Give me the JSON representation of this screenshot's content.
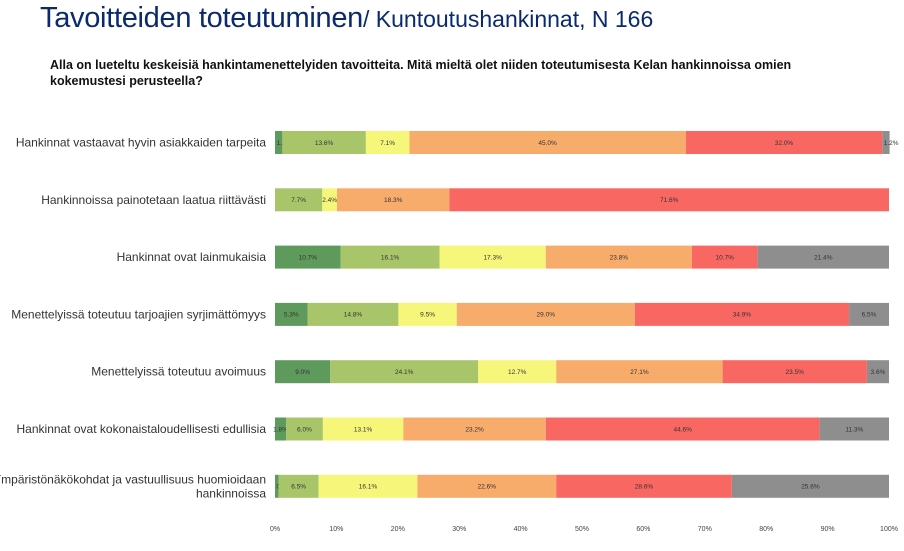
{
  "header": {
    "title_main": "Tavoitteiden toteutuminen",
    "title_sub": "/ Kuntoutushankinnat, N 166",
    "question": "Alla on lueteltu keskeisiä hankintamenettelyiden tavoitteita. Mitä mieltä olet niiden toteutumisesta Kelan hankinnoissa omien kokemustesi perusteella?"
  },
  "chart_data": {
    "type": "bar",
    "orientation": "horizontal",
    "stacked": true,
    "percent_stacked": true,
    "categories": [
      [
        "Hankinnat vastaavat hyvin asiakkaiden tarpeita"
      ],
      [
        "Hankinnoissa painotetaan laatua riittävästi"
      ],
      [
        "Hankinnat ovat lainmukaisia"
      ],
      [
        "Menettelyissä toteutuu tarjoajien syrjimättömyys"
      ],
      [
        "Menettelyissä toteutuu avoimuus"
      ],
      [
        "Hankinnat ovat kokonaistaloudellisesti edullisia"
      ],
      [
        "Ympäristönäkökohdat ja vastuullisuus huomioidaan",
        "hankinnoissa"
      ]
    ],
    "series": [
      {
        "color": "#5e9a5b",
        "values": [
          1.2,
          0,
          10.7,
          5.3,
          9.0,
          1.8,
          0.6
        ],
        "labels": [
          "1.2%",
          "",
          "10.7%",
          "5.3%",
          "9.0%",
          "1.8%",
          "0.6%"
        ]
      },
      {
        "color": "#a9c56a",
        "values": [
          13.6,
          7.7,
          16.1,
          14.8,
          24.1,
          6.0,
          6.5
        ],
        "labels": [
          "13.6%",
          "7.7%",
          "16.1%",
          "14.8%",
          "24.1%",
          "6.0%",
          "6.5%"
        ]
      },
      {
        "color": "#f6f77a",
        "values": [
          7.1,
          2.4,
          17.3,
          9.5,
          12.7,
          13.1,
          16.1
        ],
        "labels": [
          "7.1%",
          "2.4%",
          "17.3%",
          "9.5%",
          "12.7%",
          "13.1%",
          "16.1%"
        ]
      },
      {
        "color": "#f7ac6c",
        "values": [
          45.0,
          18.3,
          23.8,
          29.0,
          27.1,
          23.2,
          22.6
        ],
        "labels": [
          "45.0%",
          "18.3%",
          "23.8%",
          "29.0%",
          "27.1%",
          "23.2%",
          "22.6%"
        ]
      },
      {
        "color": "#f96763",
        "values": [
          32.0,
          71.6,
          10.7,
          34.9,
          23.5,
          44.6,
          28.6
        ],
        "labels": [
          "32.0%",
          "71.6%",
          "10.7%",
          "34.9%",
          "23.5%",
          "44.6%",
          "28.6%"
        ]
      },
      {
        "color": "#8e8e8e",
        "values": [
          1.2,
          0,
          21.4,
          6.5,
          3.6,
          11.3,
          25.6
        ],
        "labels": [
          "1.2%",
          "",
          "21.4%",
          "6.5%",
          "3.6%",
          "11.3%",
          "25.6%"
        ]
      }
    ],
    "xlim": [
      0,
      100
    ],
    "xticks": [
      "0%",
      "10%",
      "20%",
      "30%",
      "40%",
      "50%",
      "60%",
      "70%",
      "80%",
      "90%",
      "100%"
    ],
    "grid": false,
    "legend": "none"
  }
}
